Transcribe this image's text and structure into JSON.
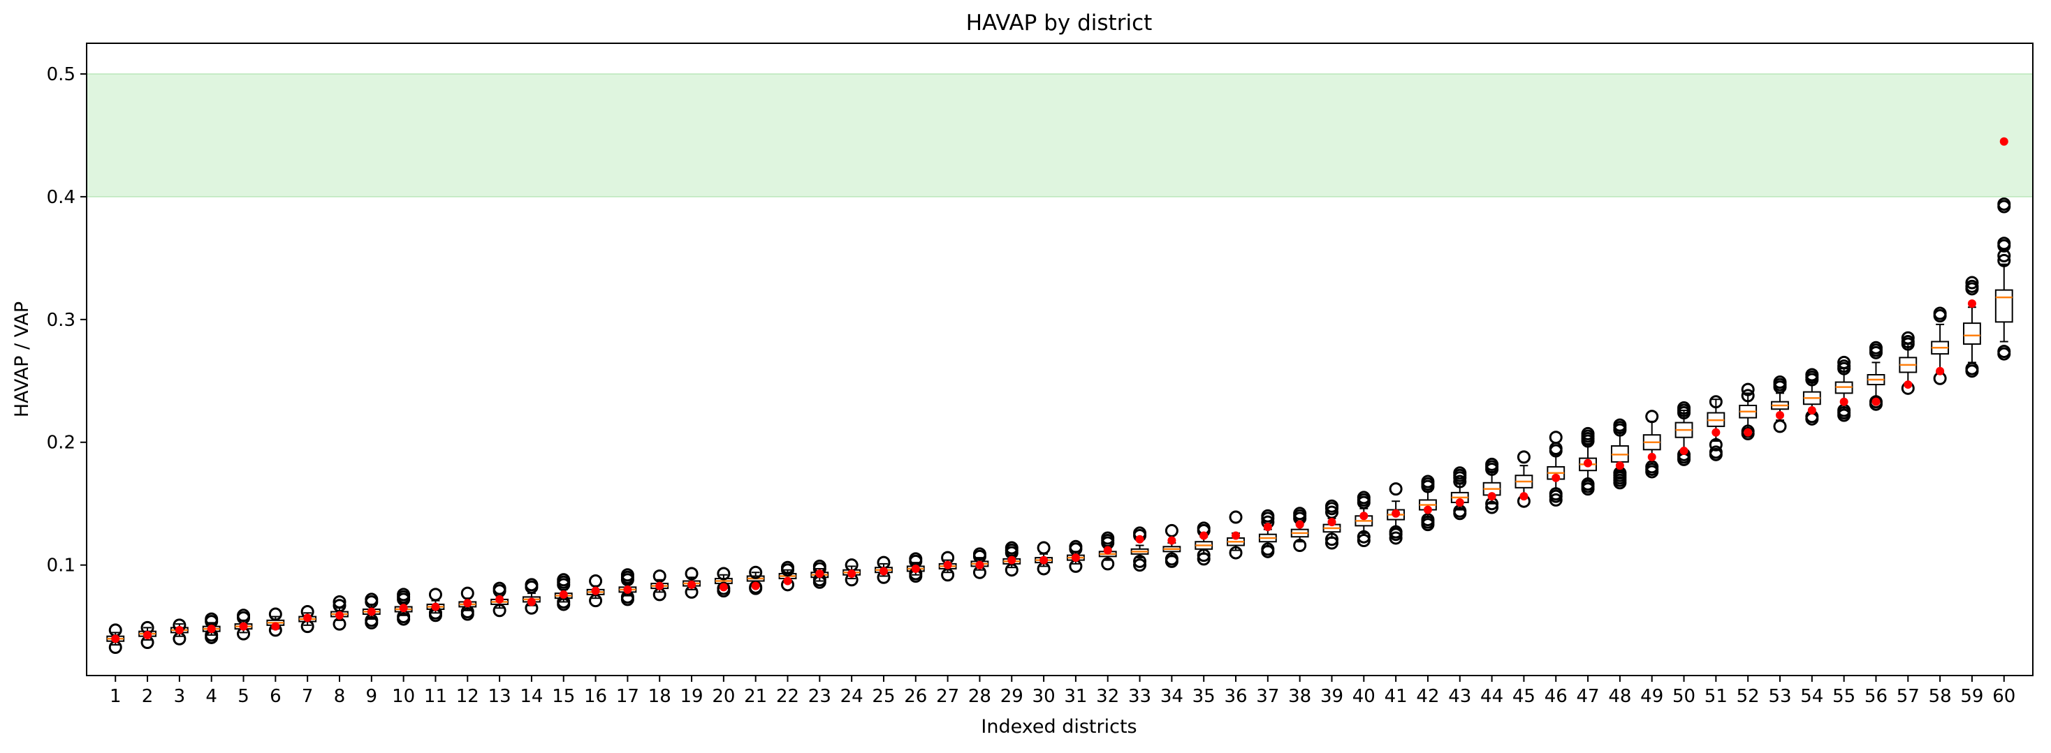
{
  "chart_data": {
    "type": "box",
    "title": "HAVAP by district",
    "xlabel": "Indexed districts",
    "ylabel": "HAVAP / VAP",
    "categories": [
      "1",
      "2",
      "3",
      "4",
      "5",
      "6",
      "7",
      "8",
      "9",
      "10",
      "11",
      "12",
      "13",
      "14",
      "15",
      "16",
      "17",
      "18",
      "19",
      "20",
      "21",
      "22",
      "23",
      "24",
      "25",
      "26",
      "27",
      "28",
      "29",
      "30",
      "31",
      "32",
      "33",
      "34",
      "35",
      "36",
      "37",
      "38",
      "39",
      "40",
      "41",
      "42",
      "43",
      "44",
      "45",
      "46",
      "47",
      "48",
      "49",
      "50",
      "51",
      "52",
      "53",
      "54",
      "55",
      "56",
      "57",
      "58",
      "59",
      "60"
    ],
    "ylim": [
      0.01,
      0.525
    ],
    "yticks": [
      0.1,
      0.2,
      0.3,
      0.4,
      0.5
    ],
    "ytick_labels": [
      "0.1",
      "0.2",
      "0.3",
      "0.4",
      "0.5"
    ],
    "band": {
      "from": 0.4,
      "to": 0.5,
      "color": "#dff5df"
    },
    "colors": {
      "median": "#ff7f0e",
      "enacted": "#ff0000",
      "box": "#000000",
      "band_edge": "#b9e6b9"
    },
    "grid": false,
    "medians": [
      0.04,
      0.044,
      0.047,
      0.048,
      0.05,
      0.053,
      0.056,
      0.06,
      0.062,
      0.064,
      0.066,
      0.068,
      0.07,
      0.072,
      0.075,
      0.078,
      0.08,
      0.083,
      0.085,
      0.087,
      0.089,
      0.091,
      0.092,
      0.094,
      0.096,
      0.097,
      0.099,
      0.101,
      0.103,
      0.104,
      0.106,
      0.109,
      0.111,
      0.113,
      0.116,
      0.119,
      0.122,
      0.126,
      0.13,
      0.136,
      0.141,
      0.149,
      0.155,
      0.162,
      0.168,
      0.175,
      0.182,
      0.19,
      0.2,
      0.21,
      0.218,
      0.225,
      0.23,
      0.236,
      0.245,
      0.251,
      0.263,
      0.277,
      0.287,
      0.318
    ],
    "q1": [
      0.038,
      0.042,
      0.045,
      0.046,
      0.048,
      0.051,
      0.054,
      0.058,
      0.06,
      0.062,
      0.064,
      0.066,
      0.068,
      0.07,
      0.073,
      0.076,
      0.078,
      0.081,
      0.083,
      0.085,
      0.087,
      0.089,
      0.09,
      0.092,
      0.094,
      0.095,
      0.097,
      0.099,
      0.101,
      0.102,
      0.104,
      0.107,
      0.109,
      0.111,
      0.113,
      0.116,
      0.119,
      0.123,
      0.127,
      0.132,
      0.137,
      0.145,
      0.151,
      0.157,
      0.163,
      0.17,
      0.177,
      0.184,
      0.194,
      0.204,
      0.213,
      0.22,
      0.227,
      0.231,
      0.24,
      0.247,
      0.257,
      0.272,
      0.28,
      0.298
    ],
    "q3": [
      0.042,
      0.046,
      0.049,
      0.05,
      0.052,
      0.055,
      0.058,
      0.062,
      0.064,
      0.066,
      0.068,
      0.07,
      0.072,
      0.074,
      0.077,
      0.08,
      0.082,
      0.085,
      0.087,
      0.089,
      0.091,
      0.093,
      0.094,
      0.096,
      0.098,
      0.099,
      0.101,
      0.103,
      0.105,
      0.106,
      0.108,
      0.111,
      0.113,
      0.115,
      0.119,
      0.122,
      0.125,
      0.129,
      0.133,
      0.14,
      0.145,
      0.153,
      0.159,
      0.167,
      0.173,
      0.18,
      0.187,
      0.197,
      0.206,
      0.216,
      0.224,
      0.23,
      0.233,
      0.241,
      0.249,
      0.255,
      0.269,
      0.282,
      0.297,
      0.324
    ],
    "whisker_low": [
      0.035,
      0.039,
      0.042,
      0.043,
      0.045,
      0.048,
      0.051,
      0.055,
      0.056,
      0.059,
      0.061,
      0.063,
      0.065,
      0.067,
      0.07,
      0.073,
      0.075,
      0.078,
      0.08,
      0.082,
      0.084,
      0.086,
      0.087,
      0.089,
      0.091,
      0.092,
      0.094,
      0.096,
      0.098,
      0.099,
      0.101,
      0.104,
      0.106,
      0.107,
      0.109,
      0.112,
      0.115,
      0.119,
      0.122,
      0.126,
      0.13,
      0.139,
      0.145,
      0.15,
      0.156,
      0.162,
      0.169,
      0.176,
      0.184,
      0.192,
      0.201,
      0.21,
      0.218,
      0.224,
      0.228,
      0.236,
      0.248,
      0.257,
      0.265,
      0.282
    ],
    "whisker_high": [
      0.045,
      0.049,
      0.052,
      0.053,
      0.055,
      0.058,
      0.061,
      0.065,
      0.068,
      0.069,
      0.071,
      0.073,
      0.075,
      0.077,
      0.08,
      0.083,
      0.085,
      0.088,
      0.09,
      0.092,
      0.094,
      0.096,
      0.097,
      0.099,
      0.101,
      0.102,
      0.104,
      0.106,
      0.108,
      0.109,
      0.111,
      0.114,
      0.116,
      0.118,
      0.123,
      0.126,
      0.129,
      0.133,
      0.138,
      0.146,
      0.152,
      0.16,
      0.166,
      0.176,
      0.181,
      0.19,
      0.198,
      0.208,
      0.217,
      0.226,
      0.235,
      0.24,
      0.24,
      0.25,
      0.26,
      0.265,
      0.28,
      0.296,
      0.31,
      0.345
    ],
    "enacted": [
      0.04,
      0.043,
      0.047,
      0.048,
      0.05,
      0.05,
      0.057,
      0.059,
      0.062,
      0.065,
      0.066,
      0.069,
      0.072,
      0.07,
      0.076,
      0.079,
      0.08,
      0.083,
      0.084,
      0.082,
      0.083,
      0.087,
      0.093,
      0.093,
      0.095,
      0.097,
      0.1,
      0.1,
      0.104,
      0.104,
      0.106,
      0.112,
      0.121,
      0.12,
      0.124,
      0.124,
      0.131,
      0.133,
      0.135,
      0.14,
      0.142,
      0.145,
      0.151,
      0.156,
      0.156,
      0.171,
      0.183,
      0.181,
      0.188,
      0.193,
      0.208,
      0.208,
      0.222,
      0.226,
      0.233,
      0.233,
      0.247,
      0.258,
      0.313,
      0.445
    ],
    "outliers_low": [
      [
        0.033
      ],
      [
        0.037
      ],
      [
        0.04
      ],
      [
        0.041,
        0.043
      ],
      [
        0.044
      ],
      [
        0.047
      ],
      [
        0.05
      ],
      [
        0.052
      ],
      [
        0.053,
        0.055
      ],
      [
        0.056,
        0.058
      ],
      [
        0.059,
        0.061
      ],
      [
        0.06,
        0.062
      ],
      [
        0.063
      ],
      [
        0.065
      ],
      [
        0.068,
        0.07
      ],
      [
        0.071
      ],
      [
        0.072,
        0.074
      ],
      [
        0.076
      ],
      [
        0.078
      ],
      [
        0.079,
        0.081
      ],
      [
        0.081,
        0.082
      ],
      [
        0.084
      ],
      [
        0.086,
        0.088
      ],
      [
        0.088
      ],
      [
        0.09
      ],
      [
        0.091,
        0.093
      ],
      [
        0.092
      ],
      [
        0.094
      ],
      [
        0.096
      ],
      [
        0.097
      ],
      [
        0.099
      ],
      [
        0.101
      ],
      [
        0.1,
        0.103
      ],
      [
        0.103,
        0.105
      ],
      [
        0.105,
        0.108
      ],
      [
        0.11
      ],
      [
        0.111,
        0.113
      ],
      [
        0.116
      ],
      [
        0.118,
        0.121
      ],
      [
        0.12,
        0.123
      ],
      [
        0.122,
        0.125,
        0.127
      ],
      [
        0.133,
        0.135,
        0.137
      ],
      [
        0.142,
        0.144
      ],
      [
        0.147,
        0.15
      ],
      [
        0.152
      ],
      [
        0.153,
        0.156,
        0.158
      ],
      [
        0.162,
        0.164,
        0.166
      ],
      [
        0.167,
        0.169,
        0.171,
        0.173,
        0.175
      ],
      [
        0.176,
        0.178,
        0.18
      ],
      [
        0.186,
        0.188,
        0.19
      ],
      [
        0.19,
        0.192,
        0.198
      ],
      [
        0.207,
        0.209
      ],
      [
        0.213
      ],
      [
        0.219,
        0.221
      ],
      [
        0.222,
        0.224,
        0.226
      ],
      [
        0.231,
        0.233
      ],
      [
        0.244
      ],
      [
        0.252
      ],
      [
        0.258,
        0.26
      ],
      [
        0.272,
        0.274
      ]
    ],
    "outliers_high": [
      [
        0.047
      ],
      [
        0.049
      ],
      [
        0.051
      ],
      [
        0.054,
        0.056
      ],
      [
        0.057,
        0.059
      ],
      [
        0.06
      ],
      [
        0.062
      ],
      [
        0.067,
        0.07
      ],
      [
        0.07,
        0.072
      ],
      [
        0.072,
        0.074,
        0.076
      ],
      [
        0.076
      ],
      [
        0.077
      ],
      [
        0.079,
        0.081
      ],
      [
        0.082,
        0.084
      ],
      [
        0.084,
        0.086,
        0.088
      ],
      [
        0.087
      ],
      [
        0.088,
        0.09,
        0.092
      ],
      [
        0.091
      ],
      [
        0.093
      ],
      [
        0.093
      ],
      [
        0.094
      ],
      [
        0.096,
        0.098
      ],
      [
        0.097,
        0.099
      ],
      [
        0.1
      ],
      [
        0.102
      ],
      [
        0.103,
        0.105
      ],
      [
        0.106
      ],
      [
        0.107,
        0.109
      ],
      [
        0.11,
        0.112,
        0.114
      ],
      [
        0.114
      ],
      [
        0.113,
        0.115
      ],
      [
        0.118,
        0.12,
        0.122
      ],
      [
        0.124,
        0.126
      ],
      [
        0.128
      ],
      [
        0.128,
        0.13
      ],
      [
        0.139
      ],
      [
        0.135,
        0.138,
        0.14
      ],
      [
        0.138,
        0.14,
        0.142
      ],
      [
        0.143,
        0.146,
        0.148
      ],
      [
        0.151,
        0.153,
        0.155
      ],
      [
        0.162
      ],
      [
        0.164,
        0.166,
        0.168
      ],
      [
        0.168,
        0.171,
        0.173,
        0.175
      ],
      [
        0.178,
        0.18,
        0.182
      ],
      [
        0.188
      ],
      [
        0.193,
        0.195,
        0.204
      ],
      [
        0.201,
        0.203,
        0.205,
        0.207
      ],
      [
        0.21,
        0.212,
        0.214
      ],
      [
        0.221
      ],
      [
        0.224,
        0.226,
        0.228
      ],
      [
        0.233
      ],
      [
        0.238,
        0.243
      ],
      [
        0.245,
        0.247,
        0.249
      ],
      [
        0.251,
        0.253,
        0.255
      ],
      [
        0.26,
        0.262,
        0.265
      ],
      [
        0.273,
        0.275,
        0.277
      ],
      [
        0.28,
        0.282,
        0.285
      ],
      [
        0.303,
        0.305
      ],
      [
        0.325,
        0.327,
        0.33
      ],
      [
        0.348,
        0.352,
        0.36,
        0.362,
        0.392,
        0.394
      ]
    ]
  }
}
